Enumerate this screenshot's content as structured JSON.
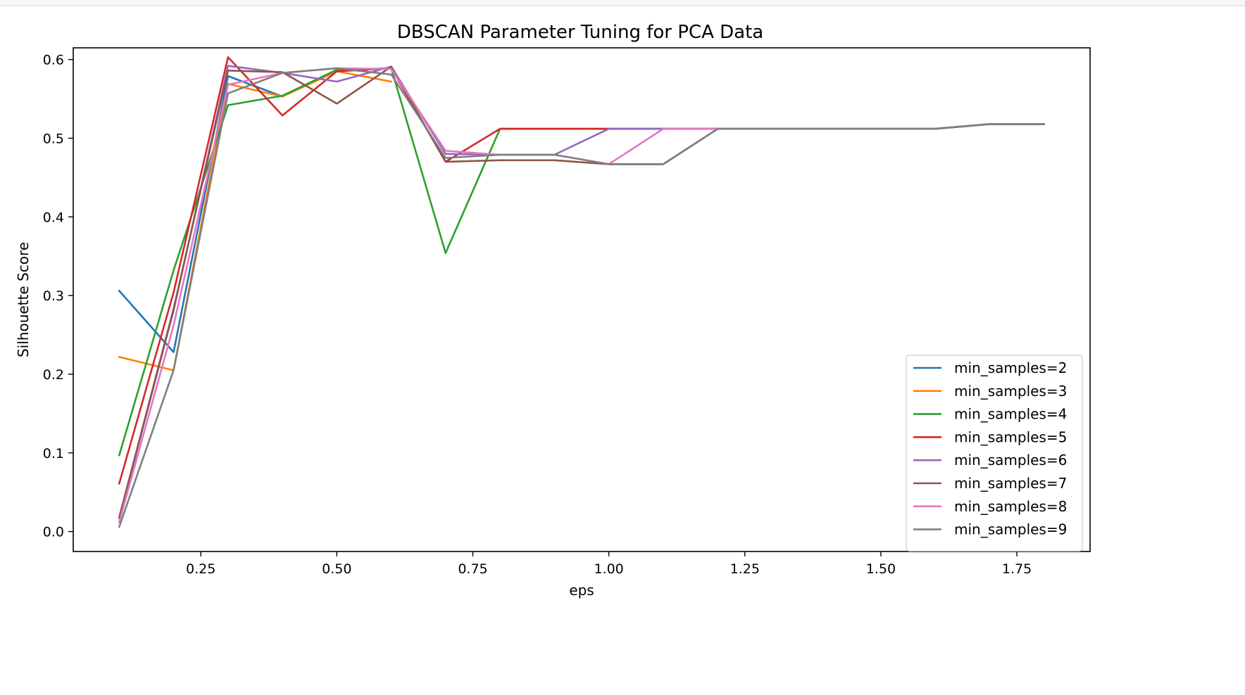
{
  "chart_data": {
    "type": "line",
    "title": "DBSCAN Parameter Tuning for PCA Data",
    "xlabel": "eps",
    "ylabel": "Silhouette Score",
    "xlim": [
      0.0155,
      1.8845
    ],
    "ylim": [
      -0.0254,
      0.6149
    ],
    "xticks": [
      0.25,
      0.5,
      0.75,
      1.0,
      1.25,
      1.5,
      1.75
    ],
    "xtick_labels": [
      "0.25",
      "0.50",
      "0.75",
      "1.00",
      "1.25",
      "1.50",
      "1.75"
    ],
    "yticks": [
      0.0,
      0.1,
      0.2,
      0.3,
      0.4,
      0.5,
      0.6
    ],
    "ytick_labels": [
      "0.0",
      "0.1",
      "0.2",
      "0.3",
      "0.4",
      "0.5",
      "0.6"
    ],
    "grid": false,
    "legend_position": "lower-right",
    "series": [
      {
        "name": "min_samples=2",
        "color": "#1f77b4",
        "x": [
          0.1,
          0.2,
          0.3,
          0.4
        ],
        "y": [
          0.306,
          0.228,
          0.579,
          0.553
        ]
      },
      {
        "name": "min_samples=3",
        "color": "#ff7f0e",
        "x": [
          0.1,
          0.2,
          0.3,
          0.4,
          0.5,
          0.6
        ],
        "y": [
          0.222,
          0.205,
          0.569,
          0.553,
          0.585,
          0.572
        ]
      },
      {
        "name": "min_samples=4",
        "color": "#2ca02c",
        "x": [
          0.1,
          0.2,
          0.3,
          0.4,
          0.5,
          0.6,
          0.7,
          0.8,
          0.9,
          1.0,
          1.1,
          1.2,
          1.3,
          1.4,
          1.5,
          1.6,
          1.7,
          1.8
        ],
        "y": [
          0.097,
          0.332,
          0.542,
          0.554,
          0.587,
          0.589,
          0.354,
          0.512,
          0.512,
          0.512,
          0.512,
          0.512,
          0.512,
          0.512,
          0.512,
          0.512,
          0.518,
          0.518
        ]
      },
      {
        "name": "min_samples=5",
        "color": "#d62728",
        "x": [
          0.1,
          0.2,
          0.3,
          0.4,
          0.5,
          0.6,
          0.7,
          0.8,
          0.9,
          1.0,
          1.1,
          1.2,
          1.3,
          1.4,
          1.5,
          1.6,
          1.7,
          1.8
        ],
        "y": [
          0.061,
          0.304,
          0.603,
          0.529,
          0.585,
          0.589,
          0.47,
          0.512,
          0.512,
          0.512,
          0.512,
          0.512,
          0.512,
          0.512,
          0.512,
          0.512,
          0.518,
          0.518
        ]
      },
      {
        "name": "min_samples=6",
        "color": "#9467bd",
        "x": [
          0.1,
          0.2,
          0.3,
          0.4,
          0.5,
          0.6,
          0.7,
          0.8,
          0.9,
          1.0,
          1.1,
          1.2,
          1.3,
          1.4,
          1.5,
          1.6,
          1.7,
          1.8
        ],
        "y": [
          0.017,
          0.281,
          0.592,
          0.583,
          0.572,
          0.591,
          0.48,
          0.479,
          0.479,
          0.512,
          0.512,
          0.512,
          0.512,
          0.512,
          0.512,
          0.512,
          0.518,
          0.518
        ]
      },
      {
        "name": "min_samples=7",
        "color": "#8c564b",
        "x": [
          0.1,
          0.2,
          0.3,
          0.4,
          0.5,
          0.6,
          0.7,
          0.8,
          0.9,
          1.0,
          1.1,
          1.2,
          1.3,
          1.4,
          1.5,
          1.6,
          1.7,
          1.8
        ],
        "y": [
          0.018,
          0.283,
          0.586,
          0.584,
          0.544,
          0.591,
          0.47,
          0.472,
          0.472,
          0.467,
          0.467,
          0.512,
          0.512,
          0.512,
          0.512,
          0.512,
          0.518,
          0.518
        ]
      },
      {
        "name": "min_samples=8",
        "color": "#e377c2",
        "x": [
          0.1,
          0.2,
          0.3,
          0.4,
          0.5,
          0.6,
          0.7,
          0.8,
          0.9,
          1.0,
          1.1,
          1.2,
          1.3,
          1.4,
          1.5,
          1.6,
          1.7,
          1.8
        ],
        "y": [
          0.012,
          0.262,
          0.568,
          0.583,
          0.589,
          0.588,
          0.484,
          0.479,
          0.479,
          0.467,
          0.512,
          0.512,
          0.512,
          0.512,
          0.512,
          0.512,
          0.518,
          0.518
        ]
      },
      {
        "name": "min_samples=9",
        "color": "#7f7f7f",
        "x": [
          0.1,
          0.2,
          0.3,
          0.4,
          0.5,
          0.6,
          0.7,
          0.8,
          0.9,
          1.0,
          1.1,
          1.2,
          1.3,
          1.4,
          1.5,
          1.6,
          1.7,
          1.8
        ],
        "y": [
          0.006,
          0.205,
          0.557,
          0.583,
          0.589,
          0.581,
          0.475,
          0.479,
          0.479,
          0.467,
          0.467,
          0.512,
          0.512,
          0.512,
          0.512,
          0.512,
          0.518,
          0.518
        ]
      }
    ]
  }
}
